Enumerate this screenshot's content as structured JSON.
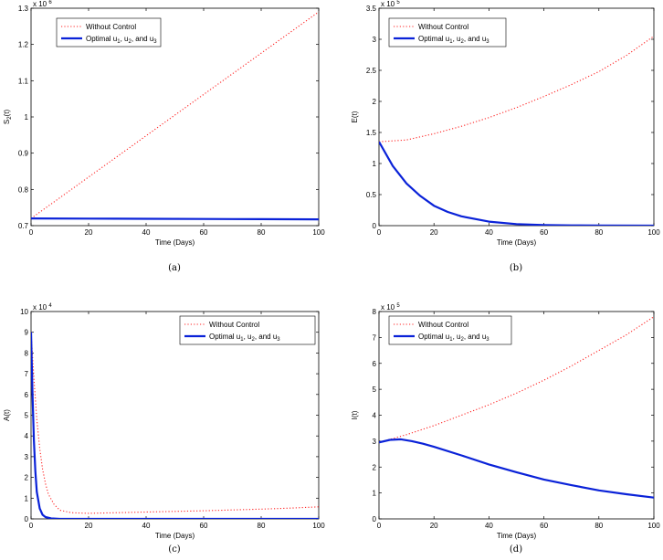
{
  "colors": {
    "without": "#ff2222",
    "optimal": "#0a22d8"
  },
  "chart_data": [
    {
      "type": "line",
      "id": "a",
      "caption": "(a)",
      "xlabel": "Time (Days)",
      "ylabel_main": "S",
      "ylabel_sub": "2",
      "ylabel_tail": "(t)",
      "exp_base": "x 10",
      "exp_power": "6",
      "xlim": [
        0,
        100
      ],
      "ylim": [
        0.7,
        1.3
      ],
      "xticks": [
        0,
        20,
        40,
        60,
        80,
        100
      ],
      "yticks": [
        0.7,
        0.8,
        0.9,
        1.0,
        1.1,
        1.2,
        1.3
      ],
      "ytick_labels": [
        "0.7",
        "0.8",
        "0.9",
        "1",
        "1.1",
        "1.2",
        "1.3"
      ],
      "legend": {
        "without": "Without Control",
        "optimal": {
          "main": "Optimal u",
          "s1": "1",
          "c1": ", u",
          "s2": "2",
          "c2": ", and u",
          "s3": "3"
        }
      },
      "series": [
        {
          "name": "Without Control",
          "style": "dotted",
          "x": [
            0,
            10,
            20,
            30,
            40,
            50,
            60,
            70,
            80,
            90,
            100
          ],
          "values": [
            0.72,
            0.777,
            0.834,
            0.891,
            0.948,
            1.005,
            1.062,
            1.119,
            1.176,
            1.233,
            1.29
          ]
        },
        {
          "name": "Optimal u1, u2, and u3",
          "style": "solid",
          "x": [
            0,
            20,
            40,
            60,
            80,
            100
          ],
          "values": [
            0.72,
            0.7195,
            0.719,
            0.7185,
            0.718,
            0.7175
          ]
        }
      ]
    },
    {
      "type": "line",
      "id": "b",
      "caption": "(b)",
      "xlabel": "Time (Days)",
      "ylabel_main": "E(t)",
      "ylabel_sub": "",
      "ylabel_tail": "",
      "exp_base": "x 10",
      "exp_power": "5",
      "xlim": [
        0,
        100
      ],
      "ylim": [
        0,
        3.5
      ],
      "xticks": [
        0,
        20,
        40,
        60,
        80,
        100
      ],
      "yticks": [
        0,
        0.5,
        1,
        1.5,
        2,
        2.5,
        3,
        3.5
      ],
      "ytick_labels": [
        "0",
        "0.5",
        "1",
        "1.5",
        "2",
        "2.5",
        "3",
        "3.5"
      ],
      "legend": {
        "without": "Without Control",
        "optimal": {
          "main": "Optimal u",
          "s1": "1",
          "c1": ", u",
          "s2": "2",
          "c2": ", and u",
          "s3": "3"
        }
      },
      "series": [
        {
          "name": "Without Control",
          "style": "dotted",
          "x": [
            0,
            10,
            20,
            30,
            40,
            50,
            60,
            70,
            80,
            90,
            100
          ],
          "values": [
            1.35,
            1.38,
            1.48,
            1.6,
            1.74,
            1.9,
            2.08,
            2.27,
            2.48,
            2.74,
            3.05
          ]
        },
        {
          "name": "Optimal u1, u2, and u3",
          "style": "solid",
          "x": [
            0,
            5,
            10,
            15,
            20,
            25,
            30,
            40,
            50,
            60,
            70,
            80,
            100
          ],
          "values": [
            1.35,
            0.96,
            0.68,
            0.48,
            0.32,
            0.22,
            0.15,
            0.065,
            0.025,
            0.01,
            0.005,
            0.002,
            0.0
          ]
        }
      ]
    },
    {
      "type": "line",
      "id": "c",
      "caption": "(c)",
      "xlabel": "Time (Days)",
      "ylabel_main": "A(t)",
      "ylabel_sub": "",
      "ylabel_tail": "",
      "exp_base": "x 10",
      "exp_power": "4",
      "xlim": [
        0,
        100
      ],
      "ylim": [
        0,
        10
      ],
      "xticks": [
        0,
        20,
        40,
        60,
        80,
        100
      ],
      "yticks": [
        0,
        1,
        2,
        3,
        4,
        5,
        6,
        7,
        8,
        9,
        10
      ],
      "ytick_labels": [
        "0",
        "1",
        "2",
        "3",
        "4",
        "5",
        "6",
        "7",
        "8",
        "9",
        "10"
      ],
      "legend": {
        "without": "Without Control",
        "optimal": {
          "main": "Optimal u",
          "s1": "1",
          "c1": ", u",
          "s2": "2",
          "c2": ", and u",
          "s3": "3"
        }
      },
      "series": [
        {
          "name": "Without Control",
          "style": "dotted",
          "x": [
            0,
            1,
            2,
            3,
            4,
            5,
            6,
            8,
            10,
            14,
            20,
            30,
            40,
            50,
            60,
            70,
            80,
            90,
            100
          ],
          "values": [
            9.0,
            6.8,
            4.8,
            3.4,
            2.4,
            1.7,
            1.2,
            0.7,
            0.42,
            0.3,
            0.27,
            0.3,
            0.33,
            0.36,
            0.39,
            0.43,
            0.47,
            0.52,
            0.58
          ]
        },
        {
          "name": "Optimal u1, u2, and u3",
          "style": "solid",
          "x": [
            0,
            0.5,
            1,
            1.5,
            2,
            3,
            4,
            5,
            7,
            10,
            20,
            40,
            60,
            80,
            100
          ],
          "values": [
            9.0,
            6.0,
            3.8,
            2.3,
            1.3,
            0.5,
            0.2,
            0.09,
            0.02,
            0.0,
            0.0,
            0.0,
            0.0,
            0.0,
            0.0
          ]
        }
      ]
    },
    {
      "type": "line",
      "id": "d",
      "caption": "(d)",
      "xlabel": "Time (Days)",
      "ylabel_main": "I(t)",
      "ylabel_sub": "",
      "ylabel_tail": "",
      "exp_base": "x 10",
      "exp_power": "5",
      "xlim": [
        0,
        100
      ],
      "ylim": [
        0,
        8
      ],
      "xticks": [
        0,
        20,
        40,
        60,
        80,
        100
      ],
      "yticks": [
        0,
        1,
        2,
        3,
        4,
        5,
        6,
        7,
        8
      ],
      "ytick_labels": [
        "0",
        "1",
        "2",
        "3",
        "4",
        "5",
        "6",
        "7",
        "8"
      ],
      "legend": {
        "without": "Without Control",
        "optimal": {
          "main": "Optimal u",
          "s1": "1",
          "c1": ", u",
          "s2": "2",
          "c2": ", and u",
          "s3": "3"
        }
      },
      "series": [
        {
          "name": "Without Control",
          "style": "dotted",
          "x": [
            0,
            10,
            20,
            30,
            40,
            50,
            60,
            70,
            80,
            90,
            100
          ],
          "values": [
            2.95,
            3.25,
            3.6,
            4.0,
            4.4,
            4.85,
            5.35,
            5.9,
            6.5,
            7.1,
            7.8
          ]
        },
        {
          "name": "Optimal u1, u2, and u3",
          "style": "solid",
          "x": [
            0,
            4,
            8,
            12,
            16,
            20,
            30,
            40,
            50,
            60,
            70,
            80,
            90,
            100
          ],
          "values": [
            2.95,
            3.05,
            3.07,
            3.0,
            2.9,
            2.78,
            2.45,
            2.1,
            1.8,
            1.52,
            1.3,
            1.1,
            0.95,
            0.82
          ]
        }
      ]
    }
  ]
}
